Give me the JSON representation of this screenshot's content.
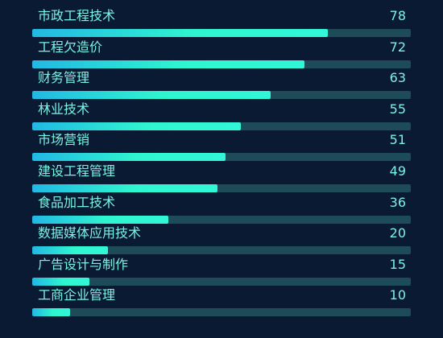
{
  "chart_data": {
    "type": "bar",
    "orientation": "horizontal",
    "categories": [
      "市政工程技术",
      "工程欠造价",
      "财务管理",
      "林业技术",
      "市场营销",
      "建设工程管理",
      "食品加工技术",
      "数据媒体应用技术",
      "广告设计与制作",
      "工商企业管理"
    ],
    "values": [
      78,
      72,
      63,
      55,
      51,
      49,
      36,
      20,
      15,
      10
    ],
    "value_labels": [
      "78",
      "72",
      "63",
      "55",
      "51",
      "49",
      "36",
      "20",
      "15",
      "10"
    ],
    "xlim": [
      0,
      100
    ],
    "grid": false,
    "legend": "none",
    "colors": {
      "background": "#0b1a33",
      "text": "#79f2e3",
      "track": "#1d4b57",
      "bar_start": "#22b8e4",
      "bar_end": "#31f7d8"
    }
  }
}
